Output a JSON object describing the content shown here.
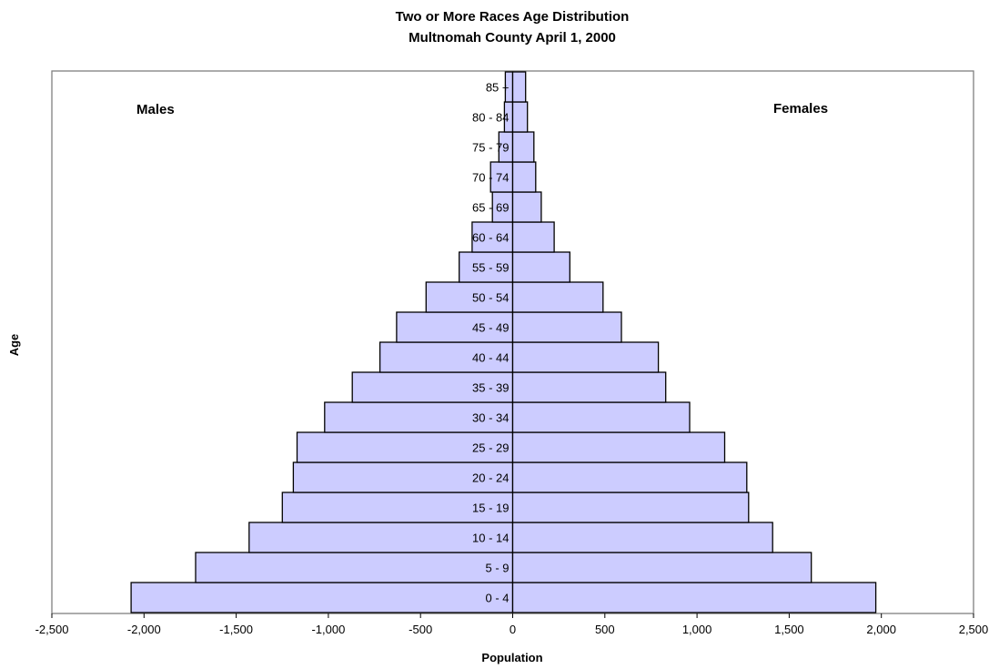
{
  "chart_data": {
    "type": "bar",
    "orientation": "horizontal",
    "title": "Two or More Races Age Distribution",
    "subtitle": "Multnomah County April 1, 2000",
    "xlabel": "Population",
    "ylabel": "Age",
    "xlim": [
      -2500,
      2500
    ],
    "xticks": [
      -2500,
      -2000,
      -1500,
      -1000,
      -500,
      0,
      500,
      1000,
      1500,
      2000,
      2500
    ],
    "xtick_labels": [
      "-2,500",
      "-2,000",
      "-1,500",
      "-1,000",
      "-500",
      "0",
      "500",
      "1,000",
      "1,500",
      "2,000",
      "2,500"
    ],
    "categories": [
      "0 - 4",
      "5 - 9",
      "10 - 14",
      "15 - 19",
      "20 - 24",
      "25 - 29",
      "30 - 34",
      "35 - 39",
      "40 - 44",
      "45 - 49",
      "50 - 54",
      "55 - 59",
      "60 - 64",
      "65 - 69",
      "70 - 74",
      "75 - 79",
      "80 - 84",
      "85 +"
    ],
    "series": [
      {
        "name": "Males",
        "values": [
          -2070,
          -1720,
          -1430,
          -1250,
          -1190,
          -1170,
          -1020,
          -870,
          -720,
          -630,
          -470,
          -290,
          -220,
          -110,
          -120,
          -75,
          -45,
          -40
        ]
      },
      {
        "name": "Females",
        "values": [
          1970,
          1620,
          1410,
          1280,
          1270,
          1150,
          960,
          830,
          790,
          590,
          490,
          310,
          225,
          155,
          125,
          115,
          80,
          70
        ]
      }
    ],
    "side_labels": {
      "left": "Males",
      "right": "Females"
    },
    "bar_color": "#ccccff",
    "bar_stroke": "#000000",
    "grid": false
  }
}
